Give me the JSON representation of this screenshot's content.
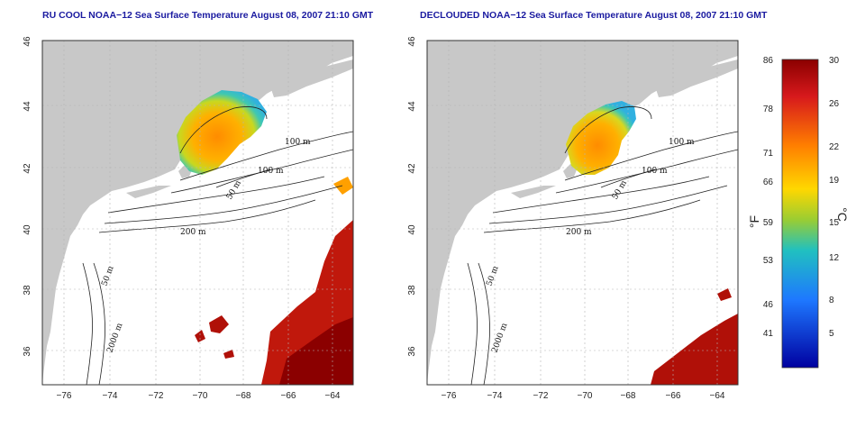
{
  "maps": [
    {
      "title": "RU COOL NOAA−12 Sea Surface Temperature August 08, 2007 21:10 GMT",
      "contour_labels": [
        "100 m",
        "100 m",
        "50 m",
        "200 m",
        "50 m",
        "2000 m"
      ]
    },
    {
      "title": "DECLOUDED NOAA−12 Sea Surface Temperature August 08, 2007 21:10 GMT",
      "contour_labels": [
        "100 m",
        "100 m",
        "50 m",
        "200 m",
        "50 m",
        "2000 m"
      ]
    }
  ],
  "axes": {
    "x_ticks": [
      "−76",
      "−74",
      "−72",
      "−70",
      "−68",
      "−66",
      "−64"
    ],
    "y_ticks": [
      "36",
      "38",
      "40",
      "42",
      "44",
      "46"
    ]
  },
  "colorbar": {
    "f_ticks": [
      "86",
      "78",
      "71",
      "66",
      "59",
      "53",
      "46",
      "41"
    ],
    "c_ticks": [
      "30",
      "26",
      "22",
      "19",
      "15",
      "12",
      "8",
      "5"
    ],
    "f_label": "°F",
    "c_label": "°C",
    "colors": [
      "#8b0000",
      "#d7191c",
      "#ff7f00",
      "#ffd700",
      "#9acd32",
      "#20c0c0",
      "#1e78ff",
      "#0000a0"
    ]
  },
  "colors": {
    "land": "#c8c8c8",
    "water": "#ffffff",
    "grid": "#b4b4b4",
    "title": "#1a1aa0"
  }
}
